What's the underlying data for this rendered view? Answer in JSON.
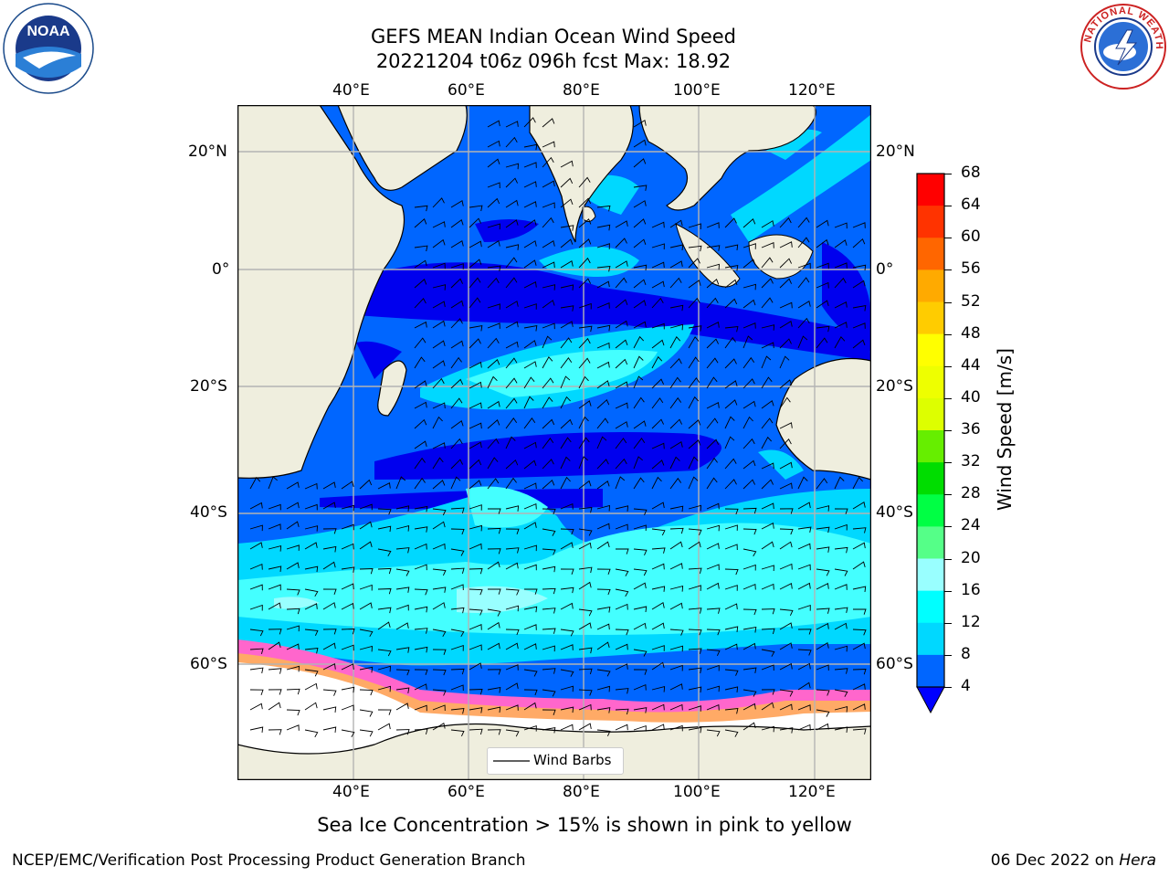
{
  "title": {
    "line1": "GEFS MEAN Indian Ocean Wind Speed",
    "line2": "20221204 t06z 096h fcst   Max: 18.92"
  },
  "logos": {
    "left": {
      "icon": "noaa-logo",
      "text": "NOAA",
      "ring_text": "NATIONAL OCEANIC AND ATMOSPHERIC ADMINISTRATION · U.S. DEPARTMENT OF COMMERCE"
    },
    "right": {
      "icon": "nws-logo",
      "ring_text": "NATIONAL WEATHER SERVICE"
    }
  },
  "map": {
    "lon_ticks": [
      "40°E",
      "60°E",
      "80°E",
      "100°E",
      "120°E"
    ],
    "lat_ticks": [
      "20°N",
      "0°",
      "20°S",
      "40°S",
      "60°S"
    ],
    "legend_label": "Wind Barbs",
    "colors": {
      "land": "#efeede",
      "ice": "#ffffff",
      "ice_edge_pink": "#ff66cc",
      "ice_edge_orange": "#ffaa66",
      "grid": "#b4b4b4"
    }
  },
  "colorbar": {
    "label": "Wind Speed [m/s]",
    "ticks": [
      "68",
      "64",
      "60",
      "56",
      "52",
      "48",
      "44",
      "40",
      "36",
      "32",
      "28",
      "24",
      "20",
      "16",
      "12",
      "8",
      "4"
    ],
    "colors_top_to_bottom": [
      "#ff0000",
      "#ff3300",
      "#ff6600",
      "#ff8800",
      "#ffaa00",
      "#ffcc00",
      "#ffff00",
      "#eeff00",
      "#ddff00",
      "#ccff00",
      "#66ee00",
      "#00dd00",
      "#00ff44",
      "#55ff88",
      "#99ffff",
      "#44ffff",
      "#00ffff",
      "#00d8ff",
      "#0066ff"
    ],
    "under_color": "#0000ff"
  },
  "caption": "Sea Ice Concentration > 15% is shown in pink to yellow",
  "footer": {
    "left": "NCEP/EMC/Verification Post Processing Product Generation Branch",
    "right_prefix": "06 Dec 2022 on ",
    "right_host": "Hera"
  }
}
